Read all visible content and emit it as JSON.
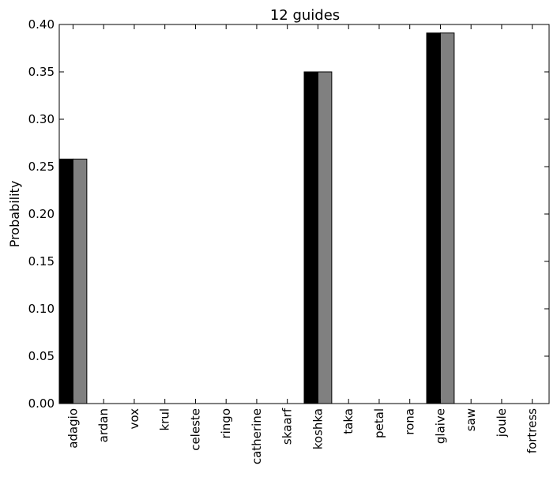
{
  "chart_data": {
    "type": "bar",
    "title": "12 guides",
    "xlabel": "",
    "ylabel": "Probability",
    "ylim": [
      0,
      0.4
    ],
    "yticks": [
      "0.00",
      "0.05",
      "0.10",
      "0.15",
      "0.20",
      "0.25",
      "0.30",
      "0.35",
      "0.40"
    ],
    "categories": [
      "adagio",
      "ardan",
      "vox",
      "krul",
      "celeste",
      "ringo",
      "catherine",
      "skaarf",
      "koshka",
      "taka",
      "petal",
      "rona",
      "glaive",
      "saw",
      "joule",
      "fortress"
    ],
    "series": [
      {
        "color": "#000000",
        "values": [
          0.258,
          0,
          0,
          0,
          0,
          0,
          0,
          0,
          0.35,
          0,
          0,
          0,
          0.391,
          0,
          0,
          0
        ]
      },
      {
        "color": "#808080",
        "values": [
          0.258,
          0,
          0,
          0,
          0,
          0,
          0,
          0,
          0.35,
          0,
          0,
          0,
          0.391,
          0,
          0,
          0
        ]
      }
    ],
    "grid": false,
    "legend": "none"
  }
}
